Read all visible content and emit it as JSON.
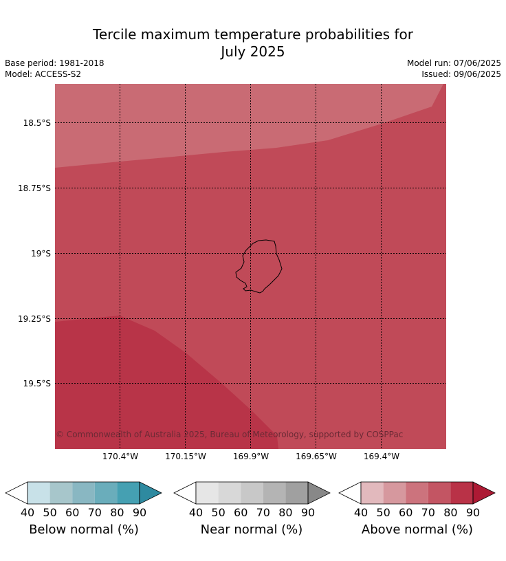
{
  "title_line1": "Tercile maximum temperature probabilities for",
  "title_line2": "July 2025",
  "base_period": "Base period: 1981-2018",
  "model": "Model: ACCESS-S2",
  "model_run": "Model run: 07/06/2025",
  "issued": "Issued: 09/06/2025",
  "lat_labels": [
    "18.5°S",
    "18.75°S",
    "19°S",
    "19.25°S",
    "19.5°S"
  ],
  "lon_labels": [
    "170.4°W",
    "170.15°W",
    "169.9°W",
    "169.65°W",
    "169.4°W"
  ],
  "copyright": "© Commonwealth of Australia 2025, Bureau of Meteorology, supported by COSPPac",
  "map_fill": {
    "band_60_70": "#c96b74",
    "band_70_80": "#c04a58",
    "band_80_90": "#b83448"
  },
  "legends": [
    {
      "title": "Below normal (%)",
      "ticks": [
        "40",
        "50",
        "60",
        "70",
        "80",
        "90"
      ],
      "colors": [
        "#ffffff",
        "#c8e1e8",
        "#a7c6cb",
        "#89b7c2",
        "#6aadbb",
        "#45a0b2",
        "#2e8aa0"
      ]
    },
    {
      "title": "Near normal (%)",
      "ticks": [
        "40",
        "50",
        "60",
        "70",
        "80",
        "90"
      ],
      "colors": [
        "#ffffff",
        "#e6e6e6",
        "#d8d8d8",
        "#c8c8c8",
        "#b4b4b4",
        "#a0a0a0",
        "#888888"
      ]
    },
    {
      "title": "Above normal (%)",
      "ticks": [
        "40",
        "50",
        "60",
        "70",
        "80",
        "90"
      ],
      "colors": [
        "#ffffff",
        "#e2b9bd",
        "#d6989e",
        "#cc737d",
        "#c35563",
        "#b93247",
        "#ad1a34"
      ]
    }
  ]
}
